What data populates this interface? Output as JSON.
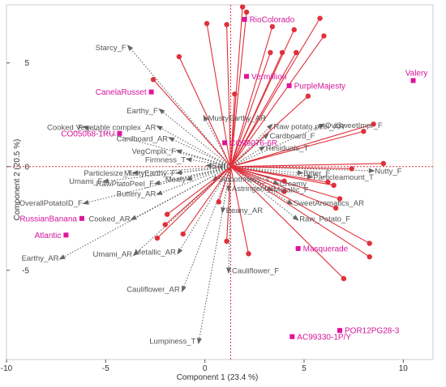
{
  "chart_data": {
    "type": "scatter",
    "subtype": "pca-biplot",
    "title": "",
    "xlabel": "Component 1 (23.4 %)",
    "ylabel": "Component 2 (20.5 %)",
    "xlim": [
      -10,
      11.5
    ],
    "ylim": [
      -9.3,
      7.8
    ],
    "xticks": [
      -10,
      -5,
      0,
      5,
      10
    ],
    "yticks": [
      -5,
      0,
      5
    ],
    "reference_lines": {
      "x": 1.3,
      "y": 0,
      "style": "dotted",
      "color": "#e0303a"
    },
    "origin": [
      1.3,
      0
    ],
    "colors": {
      "loading_arrow": "#666666",
      "variable_ray": "#e0303a",
      "sample_marker": "#e0149b",
      "attribute_label": "#555555"
    },
    "samples": [
      {
        "label": "RioColorado",
        "x": 2.0,
        "y": 7.1
      },
      {
        "label": "Vermillion",
        "x": 2.1,
        "y": 4.35
      },
      {
        "label": "PurpleMajesty",
        "x": 4.25,
        "y": 3.9
      },
      {
        "label": "Valery",
        "x": 10.5,
        "y": 4.15
      },
      {
        "label": "CanelaRusset",
        "x": -2.7,
        "y": 3.6
      },
      {
        "label": "CO05068-1RU",
        "x": -4.3,
        "y": 1.6
      },
      {
        "label": "CO99076-6R",
        "x": 1.0,
        "y": 1.15
      },
      {
        "label": "RussianBanana",
        "x": -6.2,
        "y": -2.5
      },
      {
        "label": "Atlantic",
        "x": -7.0,
        "y": -3.3
      },
      {
        "label": "Masquerade",
        "x": 4.7,
        "y": -3.95
      },
      {
        "label": "AC99330-1P/Y",
        "x": 4.4,
        "y": -8.2
      },
      {
        "label": "POR12PG28-3",
        "x": 6.8,
        "y": -7.9
      }
    ],
    "attribute_loadings": [
      {
        "label": "Starcy_F",
        "x": -3.8,
        "y": 5.75
      },
      {
        "label": "Earthy_F",
        "x": -2.2,
        "y": 2.7
      },
      {
        "label": "MustyEarthy_AR",
        "x": 0.0,
        "y": 2.35
      },
      {
        "label": "Cooked_F",
        "x": -6.0,
        "y": 1.9
      },
      {
        "label": "Vegetable complex_AR",
        "x": -2.3,
        "y": 1.9
      },
      {
        "label": "Raw potato peel_AR",
        "x": 3.3,
        "y": 1.95
      },
      {
        "label": "OvlSweetImpr_F",
        "x": 5.9,
        "y": 2.0
      },
      {
        "label": "Cardboard_F",
        "x": 3.1,
        "y": 1.5
      },
      {
        "label": "Cardboard_AR",
        "x": -1.7,
        "y": 1.35
      },
      {
        "label": "VegCmplx_F",
        "x": -1.3,
        "y": 0.75
      },
      {
        "label": "Residuals_T",
        "x": 2.9,
        "y": 0.9
      },
      {
        "label": "Firmness_T",
        "x": -0.8,
        "y": 0.35
      },
      {
        "label": "Salt",
        "x": 0.2,
        "y": 0.05
      },
      {
        "label": "Particlesize_T",
        "x": -3.5,
        "y": -0.3
      },
      {
        "label": "MustyEarthy_F",
        "x": -1.3,
        "y": -0.3
      },
      {
        "label": "Umami_F",
        "x": -5.0,
        "y": -0.7
      },
      {
        "label": "RawPtatoPeel_F",
        "x": -2.4,
        "y": -0.8
      },
      {
        "label": "Mealy",
        "x": -0.8,
        "y": -0.6
      },
      {
        "label": "Smoothness_T",
        "x": 0.5,
        "y": -0.6
      },
      {
        "label": "Bitter_F",
        "x": 4.8,
        "y": -0.3
      },
      {
        "label": "Particleamount_T",
        "x": 5.3,
        "y": -0.5
      },
      {
        "label": "Nutty_F",
        "x": 8.4,
        "y": -0.2
      },
      {
        "label": "Creamy",
        "x": 3.6,
        "y": -0.8
      },
      {
        "label": "Astringent_F",
        "x": 1.2,
        "y": -1.05
      },
      {
        "label": "Metallic_F",
        "x": 3.3,
        "y": -1.1
      },
      {
        "label": "OverallPotatoID_F",
        "x": -6.0,
        "y": -1.75
      },
      {
        "label": "Buttery_AR",
        "x": -2.3,
        "y": -1.3
      },
      {
        "label": "SweetAromatics_AR",
        "x": 4.3,
        "y": -1.75
      },
      {
        "label": "Cooked_AR",
        "x": -3.6,
        "y": -2.5
      },
      {
        "label": "Beany_AR",
        "x": 0.9,
        "y": -2.1
      },
      {
        "label": "Raw_Potato_F",
        "x": 4.6,
        "y": -2.5
      },
      {
        "label": "Umami_AR",
        "x": -3.5,
        "y": -4.2
      },
      {
        "label": "Metallic_AR",
        "x": -1.3,
        "y": -4.1
      },
      {
        "label": "Earthy_AR",
        "x": -7.2,
        "y": -4.4
      },
      {
        "label": "Cauliflower_F",
        "x": 1.2,
        "y": -5.0
      },
      {
        "label": "Cauliflower_AR",
        "x": -1.1,
        "y": -5.9
      },
      {
        "label": "Lumpiness_T",
        "x": -0.3,
        "y": -8.4
      }
    ],
    "variable_rays": [
      {
        "x": 1.9,
        "y": 7.7
      },
      {
        "x": 2.1,
        "y": 7.45
      },
      {
        "x": 0.1,
        "y": 6.9
      },
      {
        "x": 1.1,
        "y": 6.85
      },
      {
        "x": 3.4,
        "y": 6.75
      },
      {
        "x": 4.5,
        "y": 6.6
      },
      {
        "x": 5.8,
        "y": 7.15
      },
      {
        "x": 6.0,
        "y": 6.3
      },
      {
        "x": -1.3,
        "y": 5.3
      },
      {
        "x": 3.3,
        "y": 5.5
      },
      {
        "x": 3.9,
        "y": 5.5
      },
      {
        "x": 4.6,
        "y": 5.5
      },
      {
        "x": -2.6,
        "y": 4.2
      },
      {
        "x": 1.5,
        "y": 3.5
      },
      {
        "x": 5.2,
        "y": 3.4
      },
      {
        "x": 8.0,
        "y": 1.7
      },
      {
        "x": 8.5,
        "y": 2.05
      },
      {
        "x": 9.0,
        "y": 0.15
      },
      {
        "x": 7.4,
        "y": -0.1
      },
      {
        "x": 6.2,
        "y": -0.75
      },
      {
        "x": 6.5,
        "y": -0.9
      },
      {
        "x": 6.8,
        "y": -1.55
      },
      {
        "x": 6.6,
        "y": -2.0
      },
      {
        "x": 4.0,
        "y": -0.7
      },
      {
        "x": 4.0,
        "y": -1.2
      },
      {
        "x": 8.3,
        "y": -3.7
      },
      {
        "x": 8.3,
        "y": -4.35
      },
      {
        "x": 7.0,
        "y": -5.4
      },
      {
        "x": 2.2,
        "y": -4.2
      },
      {
        "x": 1.1,
        "y": -3.6
      },
      {
        "x": 0.7,
        "y": -1.7
      },
      {
        "x": -1.1,
        "y": -3.25
      },
      {
        "x": -2.4,
        "y": -3.45
      },
      {
        "x": -1.9,
        "y": -2.3
      },
      {
        "x": -2.0,
        "y": -2.8
      }
    ]
  }
}
